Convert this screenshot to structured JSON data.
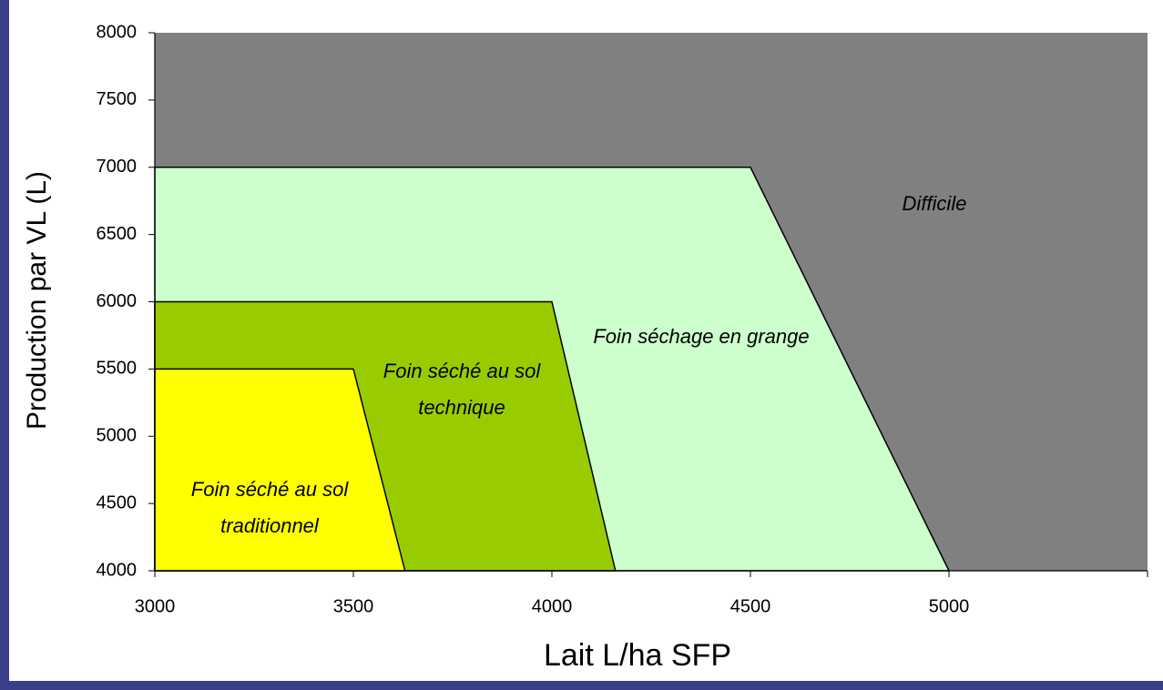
{
  "chart_data": {
    "type": "area",
    "xlabel": "Lait L/ha SFP",
    "ylabel": "Production par VL (L)",
    "xlim": [
      3000,
      5500
    ],
    "ylim": [
      4000,
      8000
    ],
    "xticks": [
      3000,
      3500,
      4000,
      4500,
      5000
    ],
    "yticks": [
      4000,
      4500,
      5000,
      5500,
      6000,
      6500,
      7000,
      7500,
      8000
    ],
    "series": [
      {
        "name": "Difficile",
        "color": "#808080",
        "x": [
          3000,
          5500
        ],
        "values": [
          8000,
          8000
        ]
      },
      {
        "name": "Foin séchage en grange",
        "color": "#ccffcc",
        "x": [
          3000,
          4500,
          5000
        ],
        "values": [
          7000,
          7000,
          4000
        ]
      },
      {
        "name": "Foin séché au sol technique",
        "color": "#99cc00",
        "x": [
          3000,
          4000,
          4160
        ],
        "values": [
          6000,
          6000,
          4000
        ]
      },
      {
        "name": "Foin séché au sol traditionnel",
        "color": "#ffff00",
        "x": [
          3000,
          3500,
          3630
        ],
        "values": [
          5500,
          5500,
          4000
        ]
      }
    ]
  }
}
